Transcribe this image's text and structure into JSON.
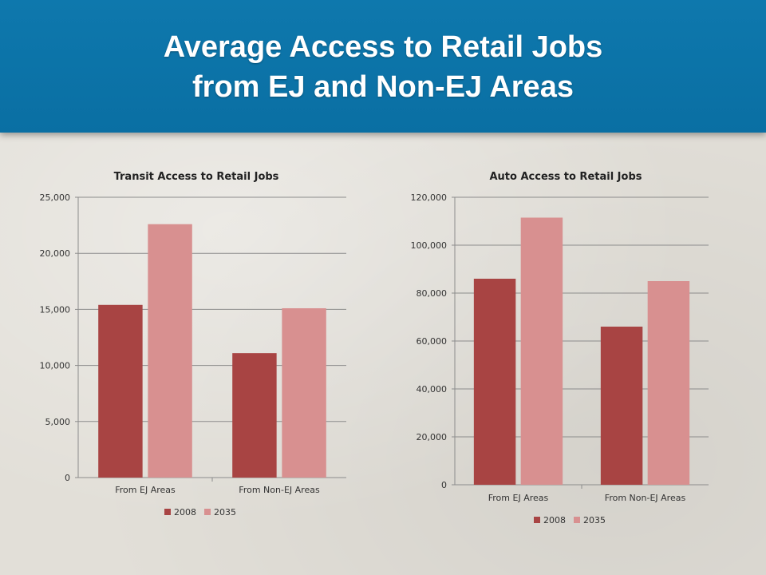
{
  "slide": {
    "title_line_1": "Average Access to Retail Jobs",
    "title_line_2": "from EJ and Non-EJ Areas",
    "banner_color": "#0e78ad"
  },
  "chart_data": [
    {
      "type": "bar",
      "title": "Transit Access to Retail Jobs",
      "categories": [
        "From EJ Areas",
        "From Non-EJ Areas"
      ],
      "series": [
        {
          "name": "2008",
          "values": [
            15400,
            11100
          ],
          "color": "#a84443"
        },
        {
          "name": "2035",
          "values": [
            22600,
            15100
          ],
          "color": "#d89090"
        }
      ],
      "ylim": [
        0,
        25000
      ],
      "yticks": [
        0,
        5000,
        10000,
        15000,
        20000,
        25000
      ],
      "ytick_labels": [
        "0",
        "5,000",
        "10,000",
        "15,000",
        "20,000",
        "25,000"
      ],
      "grid": true,
      "legend": "bottom"
    },
    {
      "type": "bar",
      "title": "Auto Access to Retail Jobs",
      "categories": [
        "From EJ Areas",
        "From Non-EJ Areas"
      ],
      "series": [
        {
          "name": "2008",
          "values": [
            86000,
            66000
          ],
          "color": "#a84443"
        },
        {
          "name": "2035",
          "values": [
            111500,
            85000
          ],
          "color": "#d89090"
        }
      ],
      "ylim": [
        0,
        120000
      ],
      "yticks": [
        0,
        20000,
        40000,
        60000,
        80000,
        100000,
        120000
      ],
      "ytick_labels": [
        "0",
        "20,000",
        "40,000",
        "60,000",
        "80,000",
        "100,000",
        "120,000"
      ],
      "grid": true,
      "legend": "bottom"
    }
  ]
}
